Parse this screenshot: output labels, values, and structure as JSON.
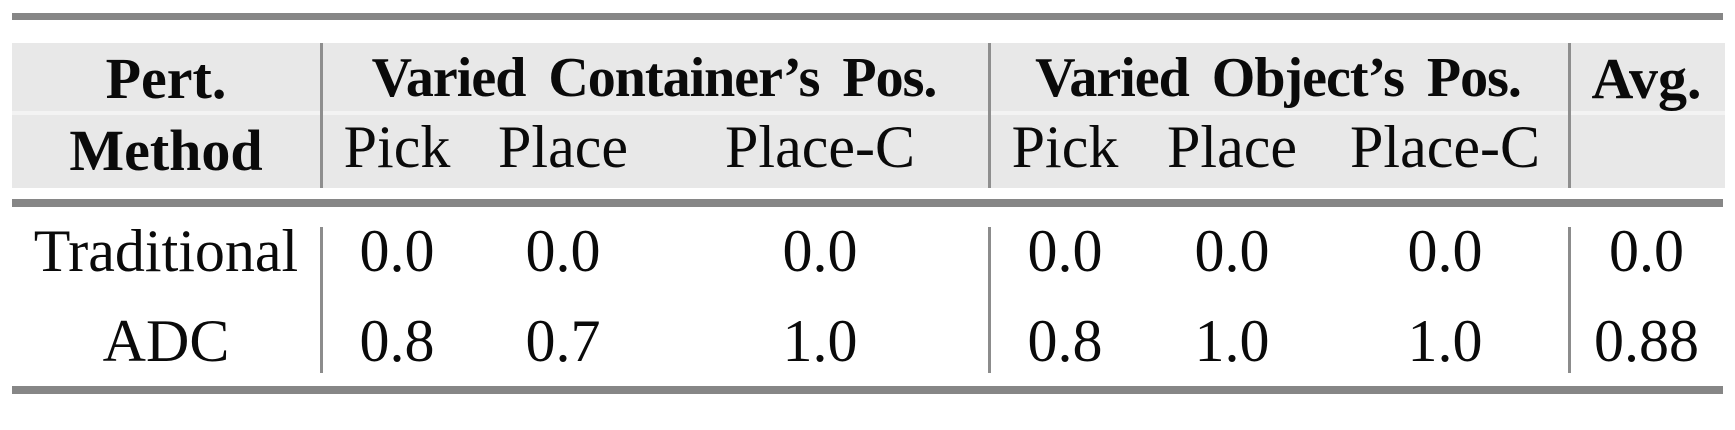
{
  "table": {
    "header": {
      "method_line1": "Pert.",
      "method_line2": "Method",
      "group1_title": "Varied Container’s Pos.",
      "group2_title": "Varied Object’s Pos.",
      "avg_label": "Avg.",
      "group1_subcols": [
        "Pick",
        "Place",
        "Place-C"
      ],
      "group2_subcols": [
        "Pick",
        "Place",
        "Place-C"
      ]
    },
    "rows": [
      {
        "method": "Traditional",
        "values": [
          "0.0",
          "0.0",
          "0.0",
          "0.0",
          "0.0",
          "0.0"
        ],
        "avg": "0.0"
      },
      {
        "method": "ADC",
        "values": [
          "0.8",
          "0.7",
          "1.0",
          "0.8",
          "1.0",
          "1.0"
        ],
        "avg": "0.88"
      }
    ],
    "colors": {
      "header_background": "#e8e8e8",
      "rule": "#868686",
      "separator": "#8e8e8e",
      "text": "#0a0a0a"
    }
  },
  "chart_data": {
    "type": "table",
    "title": "",
    "column_groups": [
      "Varied Container's Pos.",
      "Varied Object's Pos."
    ],
    "columns": [
      "Pert. Method",
      "Pick",
      "Place",
      "Place-C",
      "Pick",
      "Place",
      "Place-C",
      "Avg."
    ],
    "rows": [
      [
        "Traditional",
        0.0,
        0.0,
        0.0,
        0.0,
        0.0,
        0.0,
        0.0
      ],
      [
        "ADC",
        0.8,
        0.7,
        1.0,
        0.8,
        1.0,
        1.0,
        0.88
      ]
    ]
  }
}
